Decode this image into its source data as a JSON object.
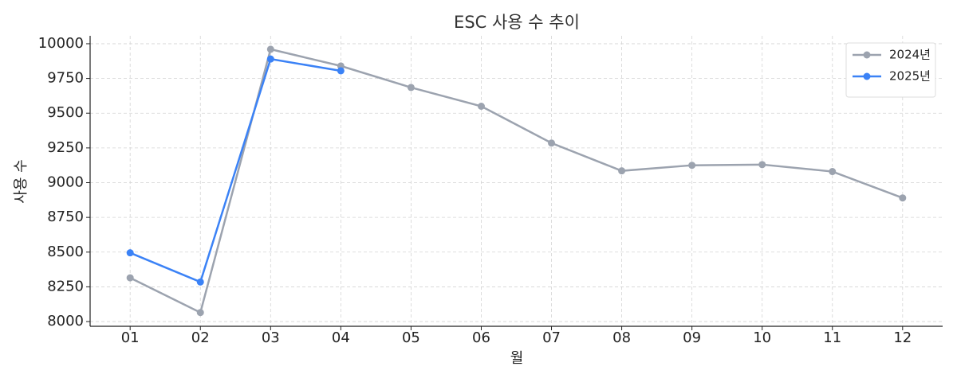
{
  "chart_data": {
    "type": "line",
    "title": "ESC 사용 수 추이",
    "x_label": "월",
    "y_label": "사용 수",
    "categories": [
      "01",
      "02",
      "03",
      "04",
      "05",
      "06",
      "07",
      "08",
      "09",
      "10",
      "11",
      "12"
    ],
    "series": [
      {
        "name": "2024년",
        "color": "#9ca3af",
        "values": [
          8315,
          8065,
          9960,
          9840,
          9685,
          9550,
          9285,
          9085,
          9125,
          9130,
          9080,
          8890
        ]
      },
      {
        "name": "2025년",
        "color": "#3b82f6",
        "values": [
          8495,
          8285,
          9890,
          9805,
          null,
          null,
          null,
          null,
          null,
          null,
          null,
          null
        ]
      }
    ],
    "ylim": [
      7966,
      10057
    ],
    "yticks": [
      8000,
      8250,
      8500,
      8750,
      9000,
      9250,
      9500,
      9750,
      10000
    ],
    "grid": true,
    "legend": "upper right"
  }
}
